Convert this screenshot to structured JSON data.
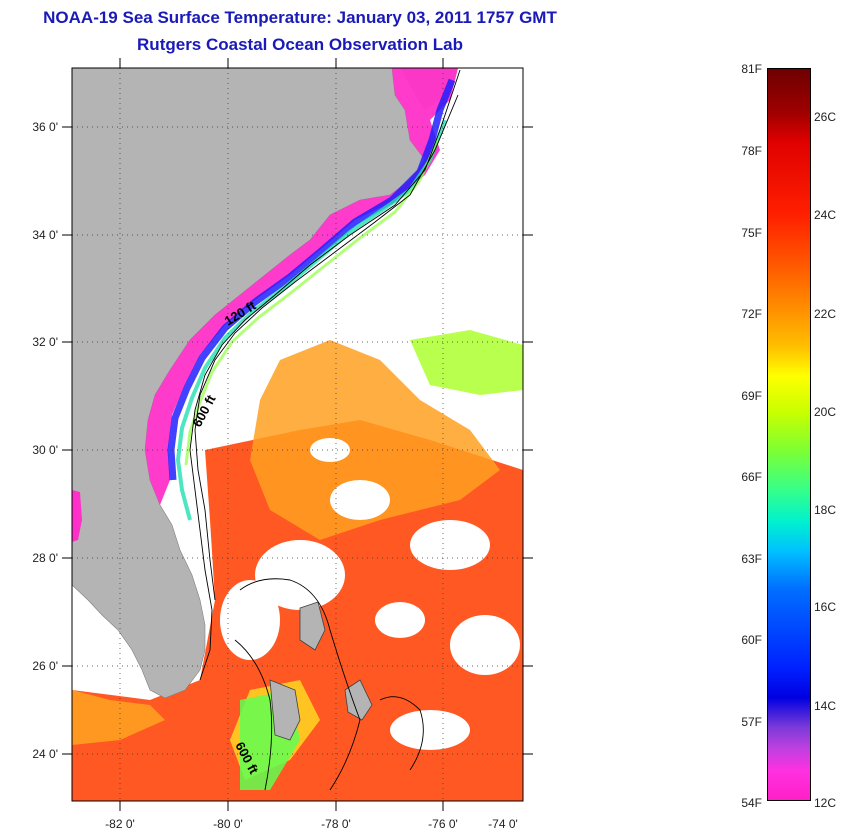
{
  "header": {
    "title": "NOAA-19 Sea Surface Temperature:  January 03, 2011 1757 GMT",
    "subtitle": "Rutgers Coastal Ocean Observation Lab"
  },
  "map": {
    "lat_labels": [
      "36 0'",
      "34 0'",
      "32 0'",
      "30 0'",
      "28 0'",
      "26 0'",
      "24 0'"
    ],
    "lon_labels": [
      "-82 0'",
      "-80 0'",
      "-78 0'",
      "-76 0'",
      "-74 0'"
    ],
    "isobaths": {
      "shelf_north": "120 ft",
      "slope_north": "600 ft",
      "slope_south": "600 ft"
    },
    "colors": {
      "land": "#b4b4b4",
      "cloud": "#ffffff",
      "cold_shelf": "#ff30c8",
      "gulf_stream": "#ff4a10"
    }
  },
  "colorbar": {
    "fahrenheit": [
      "81F",
      "78F",
      "75F",
      "72F",
      "69F",
      "66F",
      "63F",
      "60F",
      "57F",
      "54F"
    ],
    "celsius": [
      "26C",
      "24C",
      "22C",
      "20C",
      "18C",
      "16C",
      "14C",
      "12C"
    ]
  }
}
